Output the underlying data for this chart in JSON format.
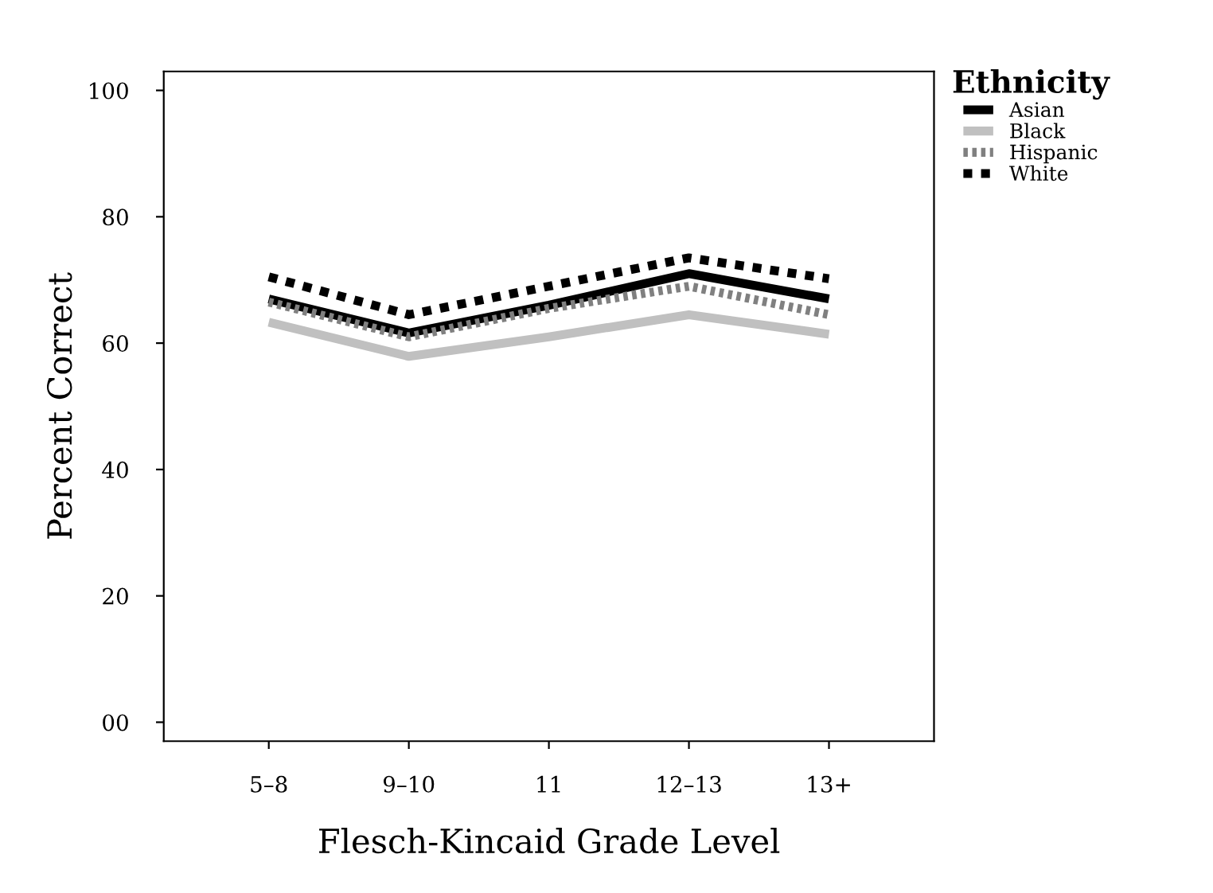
{
  "chart_data": {
    "type": "line",
    "xlabel": "Flesch-Kincaid Grade Level",
    "ylabel": "Percent Correct",
    "legend_title": "Ethnicity",
    "categories": [
      "5–8",
      "9–10",
      "11",
      "12–13",
      "13+"
    ],
    "ylim": [
      -3,
      103
    ],
    "yticks": [
      {
        "value": 0,
        "label": "00"
      },
      20,
      40,
      60,
      80,
      100
    ],
    "legend": "top right",
    "grid": false,
    "series": [
      {
        "name": "Asian",
        "color": "#000000",
        "line_style": "solid",
        "values": [
          67,
          61.6,
          66,
          71,
          67
        ]
      },
      {
        "name": "Black",
        "color": "#c0c0c0",
        "line_style": "solid",
        "values": [
          63.3,
          57.9,
          61,
          64.5,
          61.4
        ]
      },
      {
        "name": "Hispanic",
        "color": "#808080",
        "line_style": "dotted",
        "values": [
          66.5,
          61,
          65.5,
          69,
          64.5
        ]
      },
      {
        "name": "White",
        "color": "#000000",
        "line_style": "dashed",
        "values": [
          70.5,
          64.5,
          69,
          73.5,
          70.2
        ]
      }
    ]
  }
}
